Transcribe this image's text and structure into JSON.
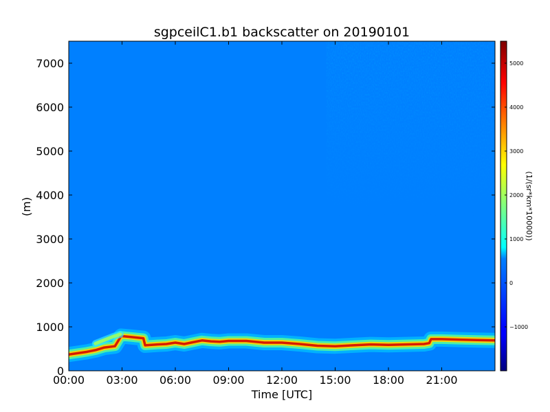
{
  "chart_data": {
    "type": "heatmap",
    "title": "sgpceilC1.b1 backscatter on 20190101",
    "xlabel": "Time [UTC]",
    "ylabel": "(m)",
    "x_unit": "hours UTC",
    "xlim": [
      0,
      24
    ],
    "ylim": [
      0,
      7500
    ],
    "x_ticks": [
      0,
      3,
      6,
      9,
      12,
      15,
      18,
      21
    ],
    "x_tick_labels": [
      "00:00",
      "03:00",
      "06:00",
      "09:00",
      "12:00",
      "15:00",
      "18:00",
      "21:00"
    ],
    "y_ticks": [
      0,
      1000,
      2000,
      3000,
      4000,
      5000,
      6000,
      7000
    ],
    "y_tick_labels": [
      "0",
      "1000",
      "2000",
      "3000",
      "4000",
      "5000",
      "6000",
      "7000"
    ],
    "colorbar": {
      "label": "(1/(sr*km*10000))",
      "colormap": "jet",
      "range": [
        -2000,
        5500
      ],
      "ticks": [
        -1000,
        0,
        1000,
        2000,
        3000,
        4000,
        5000
      ],
      "tick_labels": [
        "−1000",
        "0",
        "1000",
        "2000",
        "3000",
        "4000",
        "5000"
      ]
    },
    "background_value": 0,
    "grid": false,
    "cloud_layer": {
      "description_values": "lowest cloud base height (m) over time (h)",
      "x": [
        0,
        0.5,
        1,
        1.5,
        2,
        2.6,
        2.95,
        3.5,
        4.2,
        4.3,
        5,
        5.5,
        6,
        6.5,
        7,
        7.5,
        8,
        8.5,
        9,
        10,
        11,
        12,
        13,
        14,
        15,
        16,
        17,
        18,
        19,
        20,
        20.3,
        20.4,
        21,
        22,
        23,
        24
      ],
      "y": [
        370,
        400,
        430,
        470,
        530,
        560,
        790,
        770,
        740,
        580,
        600,
        610,
        640,
        610,
        650,
        690,
        670,
        660,
        680,
        680,
        640,
        640,
        610,
        570,
        560,
        580,
        600,
        590,
        600,
        610,
        630,
        720,
        720,
        710,
        700,
        690
      ],
      "upper_branch_x": [
        1.5,
        2,
        2.5,
        2.9
      ],
      "upper_branch_y": [
        620,
        700,
        780,
        830
      ],
      "high_noise_region": {
        "x_start": 14.5,
        "x_end": 24,
        "y_start": 3500,
        "y_end": 7500
      }
    }
  }
}
